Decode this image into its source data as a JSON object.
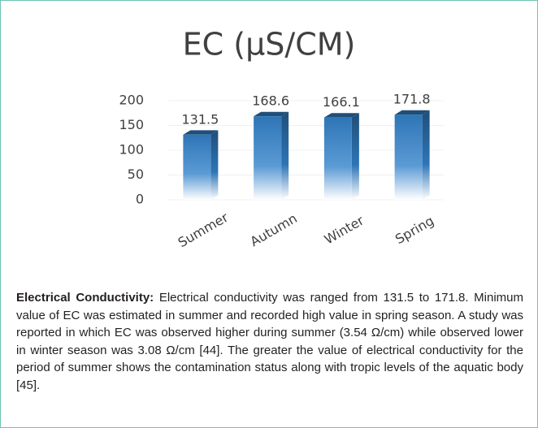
{
  "chart_data": {
    "type": "bar",
    "title": "EC (µS/CM)",
    "categories": [
      "Summer",
      "Autumn",
      "Winter",
      "Spring"
    ],
    "values": [
      131.5,
      168.6,
      166.1,
      171.8
    ],
    "color": "#2e75b6",
    "ylim": [
      0,
      200
    ],
    "yticks": [
      0,
      50,
      100,
      150,
      200
    ],
    "grid": true
  },
  "caption": {
    "heading": "Electrical Conductivity:",
    "text": "Electrical conductivity was ranged from 131.5 to 171.8. Minimum value of EC was estimated in summer and recorded high value in spring season. A study was reported in which EC was observed higher during summer (3.54 Ω/cm) while observed lower in winter season was 3.08 Ω/cm [44]. The greater the value of electrical conductivity for the period of summer shows the contamination status along with tropic levels of the aquatic body [45]."
  }
}
